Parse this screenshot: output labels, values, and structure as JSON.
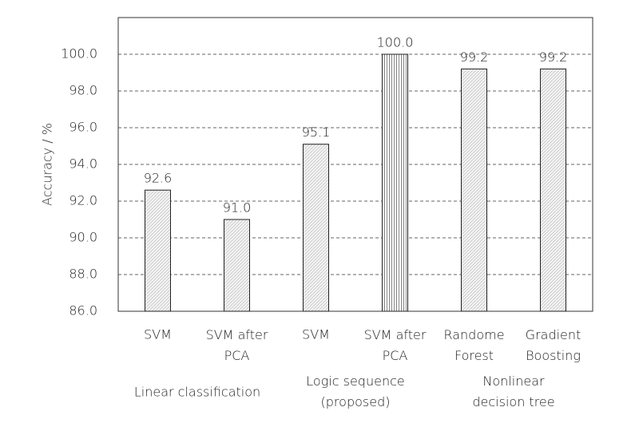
{
  "chart_data": {
    "type": "bar",
    "y_label": "Accuracy / %",
    "categories": [
      "SVM",
      "SVM after\nPCA",
      "SVM",
      "SVM after\nPCA",
      "Randome\nForest",
      "Gradient\nBoosting"
    ],
    "values": [
      92.6,
      91.0,
      95.1,
      100.0,
      99.2,
      99.2
    ],
    "value_labels": [
      "92.6",
      "91.0",
      "95.1",
      "100.0",
      "99.2",
      "99.2"
    ],
    "bar_patterns": [
      "dots",
      "dots",
      "dots",
      "vertical-lines",
      "dots",
      "dots"
    ],
    "groups": [
      "Linear classification",
      "Logic sequence\n(proposed)",
      "Nonlinear\ndecision tree"
    ],
    "ylim": [
      86,
      102
    ],
    "yticks": [
      {
        "value": 86,
        "label": "86.0"
      },
      {
        "value": 88,
        "label": "88.0"
      },
      {
        "value": 90,
        "label": "90.0"
      },
      {
        "value": 92,
        "label": "92.0"
      },
      {
        "value": 94,
        "label": "94.0"
      },
      {
        "value": 96,
        "label": "96.0"
      },
      {
        "value": 98,
        "label": "98.0"
      },
      {
        "value": 100,
        "label": "100.0"
      }
    ],
    "grid": true
  }
}
